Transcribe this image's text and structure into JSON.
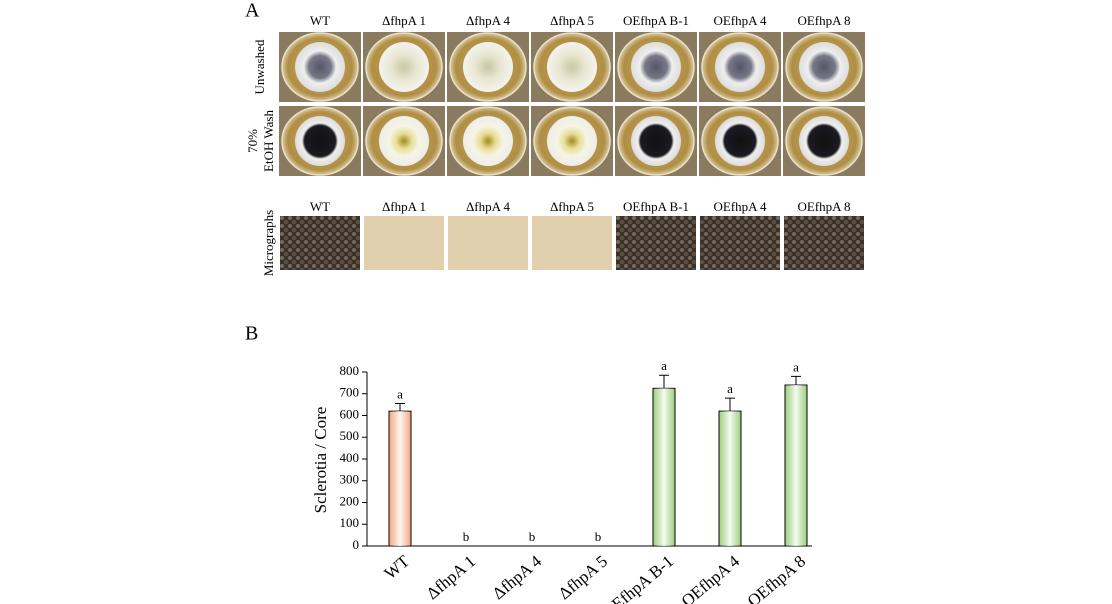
{
  "panel_a": {
    "label": "A",
    "columns": [
      "WT",
      "ΔfhpA 1",
      "ΔfhpA 4",
      "ΔfhpA 5",
      "OEfhpA B-1",
      "OEfhpA 4",
      "OEfhpA 8"
    ],
    "rows": [
      [
        "Unwashed"
      ],
      [
        "70%",
        "EtOH Wash"
      ]
    ],
    "micrographs": {
      "row_label": "Micrographs",
      "columns": [
        "WT",
        "ΔfhpA 1",
        "ΔfhpA 4",
        "ΔfhpA 5",
        "OEfhpA B-1",
        "OEfhpA 4",
        "OEfhpA 8"
      ]
    }
  },
  "panel_b": {
    "label": "B"
  },
  "chart_data": {
    "type": "bar",
    "y_label": "Sclerotia / Core",
    "categories": [
      "WT",
      "ΔfhpA 1",
      "ΔfhpA 4",
      "ΔfhpA 5",
      "OEfhpA B-1",
      "OEfhpA 4",
      "OEfhpA 8"
    ],
    "values": [
      620,
      0,
      0,
      0,
      725,
      620,
      740
    ],
    "errors": [
      35,
      0,
      0,
      0,
      60,
      60,
      40
    ],
    "annotations": [
      "a",
      "b",
      "b",
      "b",
      "a",
      "a",
      "a"
    ],
    "colors": [
      "#f4a582",
      "#9bcf7a",
      "#9bcf7a",
      "#9bcf7a",
      "#9bcf7a",
      "#9bcf7a",
      "#9bcf7a"
    ],
    "ylim": [
      0,
      800
    ],
    "yticks": [
      0,
      100,
      200,
      300,
      400,
      500,
      600,
      700,
      800
    ]
  }
}
